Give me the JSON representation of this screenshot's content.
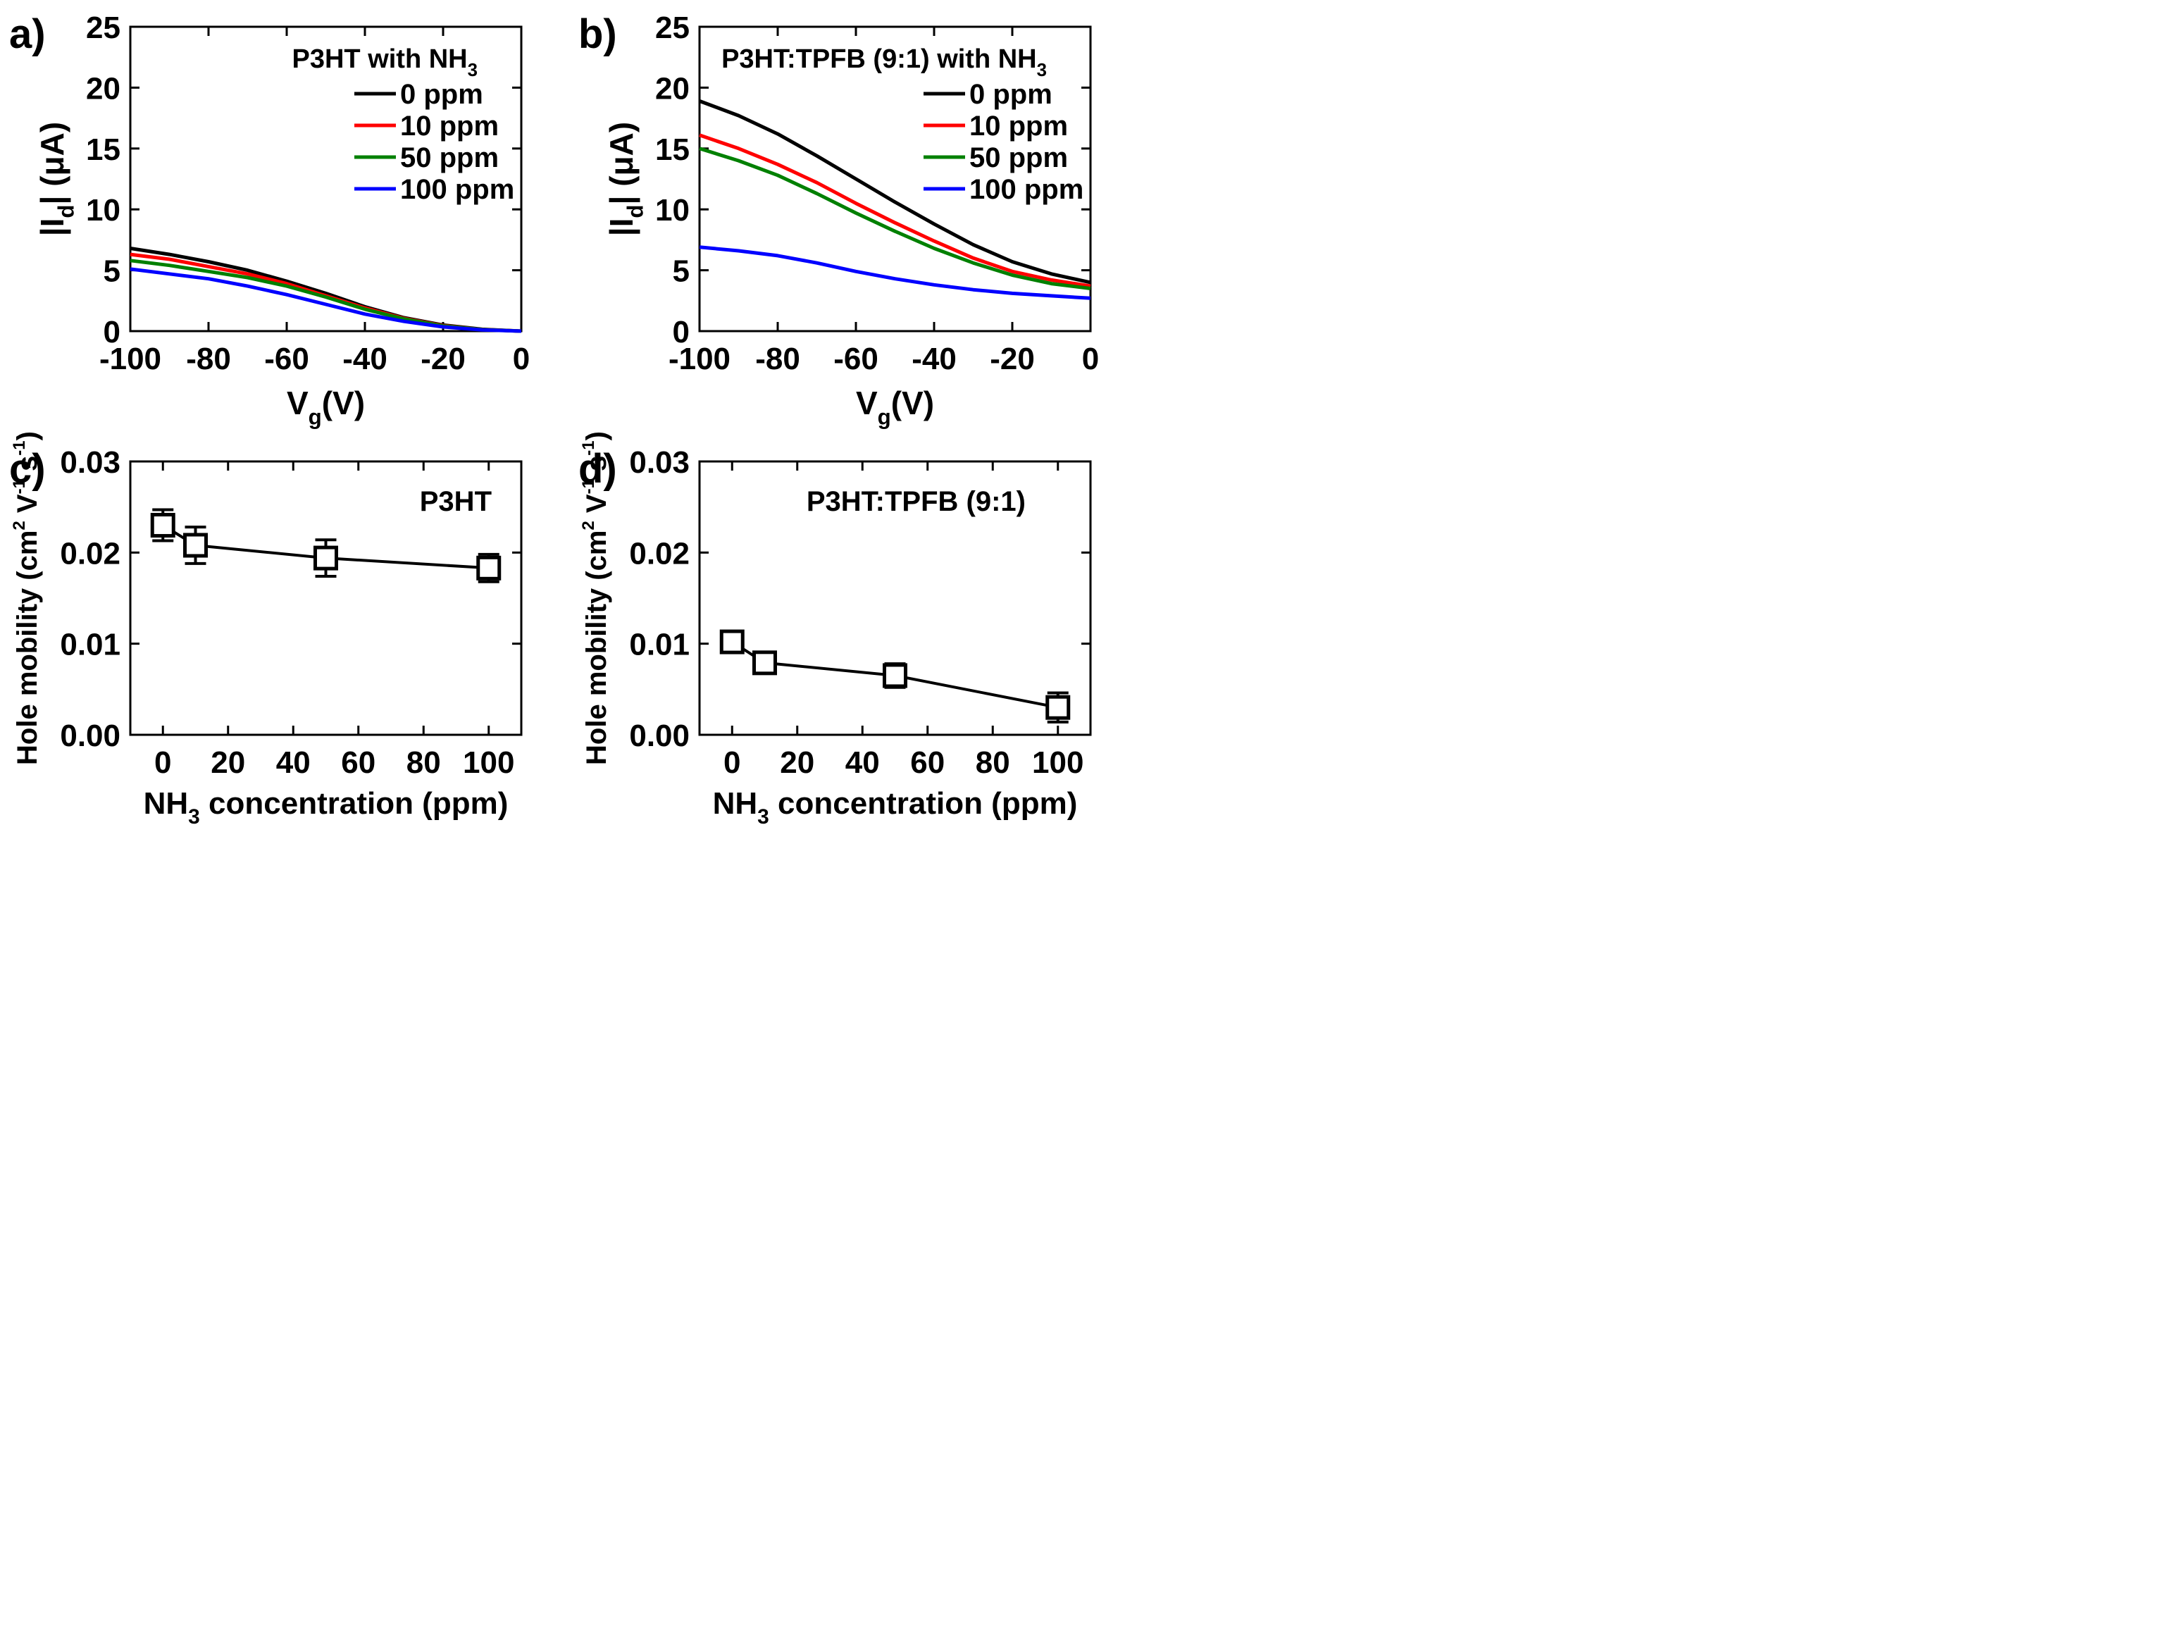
{
  "chart_data": [
    {
      "panel": "a)",
      "type": "line",
      "inset_title": "P3HT with NH",
      "inset_title_sub": "3",
      "xlabel_main": "V",
      "xlabel_sub": "g",
      "xlabel_tail": "(V)",
      "ylabel_pre": "|I",
      "ylabel_sub": "d",
      "ylabel_tail": "| (μA)",
      "xlim": [
        -100,
        0
      ],
      "ylim": [
        0,
        25
      ],
      "xticks": [
        -100,
        -80,
        -60,
        -40,
        -20,
        0
      ],
      "xtick_labels": [
        "-100",
        "-80",
        "-60",
        "-40",
        "-20",
        "0"
      ],
      "yticks": [
        0,
        5,
        10,
        15,
        20,
        25
      ],
      "ytick_labels": [
        "0",
        "5",
        "10",
        "15",
        "20",
        "25"
      ],
      "legend_position": "top-right",
      "x": [
        -100,
        -90,
        -80,
        -70,
        -60,
        -50,
        -40,
        -30,
        -20,
        -10,
        0
      ],
      "series": [
        {
          "name": "0 ppm",
          "color": "#000000",
          "values": [
            6.8,
            6.3,
            5.7,
            5.0,
            4.1,
            3.1,
            2.0,
            1.1,
            0.5,
            0.15,
            0.0
          ]
        },
        {
          "name": "10 ppm",
          "color": "#ff0000",
          "values": [
            6.3,
            5.9,
            5.3,
            4.7,
            3.9,
            2.9,
            1.9,
            1.05,
            0.45,
            0.13,
            0.0
          ]
        },
        {
          "name": "50 ppm",
          "color": "#008000",
          "values": [
            5.8,
            5.4,
            4.9,
            4.4,
            3.7,
            2.8,
            1.8,
            1.0,
            0.42,
            0.12,
            0.0
          ]
        },
        {
          "name": "100 ppm",
          "color": "#0000ff",
          "values": [
            5.1,
            4.7,
            4.3,
            3.7,
            3.0,
            2.2,
            1.4,
            0.8,
            0.35,
            0.1,
            0.0
          ]
        }
      ]
    },
    {
      "panel": "b)",
      "type": "line",
      "inset_title": "P3HT:TPFB (9:1) with NH",
      "inset_title_sub": "3",
      "xlabel_main": "V",
      "xlabel_sub": "g",
      "xlabel_tail": "(V)",
      "ylabel_pre": "|I",
      "ylabel_sub": "d",
      "ylabel_tail": "| (μA)",
      "xlim": [
        -100,
        0
      ],
      "ylim": [
        0,
        25
      ],
      "xticks": [
        -100,
        -80,
        -60,
        -40,
        -20,
        0
      ],
      "xtick_labels": [
        "-100",
        "-80",
        "-60",
        "-40",
        "-20",
        "0"
      ],
      "yticks": [
        0,
        5,
        10,
        15,
        20,
        25
      ],
      "ytick_labels": [
        "0",
        "5",
        "10",
        "15",
        "20",
        "25"
      ],
      "legend_position": "top-right",
      "x": [
        -100,
        -90,
        -80,
        -70,
        -60,
        -50,
        -40,
        -30,
        -20,
        -10,
        0
      ],
      "series": [
        {
          "name": "0 ppm",
          "color": "#000000",
          "values": [
            18.9,
            17.7,
            16.2,
            14.4,
            12.5,
            10.6,
            8.8,
            7.1,
            5.7,
            4.7,
            4.0
          ]
        },
        {
          "name": "10 ppm",
          "color": "#ff0000",
          "values": [
            16.1,
            15.0,
            13.7,
            12.2,
            10.5,
            8.9,
            7.4,
            6.0,
            4.9,
            4.2,
            3.7
          ]
        },
        {
          "name": "50 ppm",
          "color": "#008000",
          "values": [
            15.0,
            14.0,
            12.8,
            11.3,
            9.7,
            8.2,
            6.8,
            5.6,
            4.6,
            3.9,
            3.5
          ]
        },
        {
          "name": "100 ppm",
          "color": "#0000ff",
          "values": [
            6.9,
            6.6,
            6.2,
            5.6,
            4.9,
            4.3,
            3.8,
            3.4,
            3.1,
            2.9,
            2.7
          ]
        }
      ]
    },
    {
      "panel": "c)",
      "type": "scatter",
      "inset_title": "P3HT",
      "xlabel_main": "NH",
      "xlabel_sub": "3",
      "xlabel_tail": " concentration (ppm)",
      "ylabel_pre": "Hole mobility (cm",
      "ylabel_sup1": "2",
      "ylabel_mid": " V",
      "ylabel_sup2": "-1",
      "ylabel_mid2": " s",
      "ylabel_sup3": "-1",
      "ylabel_tail": ")",
      "xlim": [
        -10,
        110
      ],
      "ylim": [
        0,
        0.03
      ],
      "xticks": [
        0,
        20,
        40,
        60,
        80,
        100
      ],
      "xtick_labels": [
        "0",
        "20",
        "40",
        "60",
        "80",
        "100"
      ],
      "yticks": [
        0,
        0.01,
        0.02,
        0.03
      ],
      "ytick_labels": [
        "0.00",
        "0.01",
        "0.02",
        "0.03"
      ],
      "x": [
        0,
        10,
        50,
        100
      ],
      "values": [
        0.023,
        0.0208,
        0.0194,
        0.0183
      ],
      "errors": [
        0.0017,
        0.002,
        0.002,
        0.0015
      ]
    },
    {
      "panel": "d)",
      "type": "scatter",
      "inset_title": "P3HT:TPFB (9:1)",
      "xlabel_main": "NH",
      "xlabel_sub": "3",
      "xlabel_tail": " concentration (ppm)",
      "ylabel_pre": "Hole mobility (cm",
      "ylabel_sup1": "2",
      "ylabel_mid": " V",
      "ylabel_sup2": "-1",
      "ylabel_mid2": " s",
      "ylabel_sup3": "-1",
      "ylabel_tail": ")",
      "xlim": [
        -10,
        110
      ],
      "ylim": [
        0,
        0.03
      ],
      "xticks": [
        0,
        20,
        40,
        60,
        80,
        100
      ],
      "xtick_labels": [
        "0",
        "20",
        "40",
        "60",
        "80",
        "100"
      ],
      "yticks": [
        0,
        0.01,
        0.02,
        0.03
      ],
      "ytick_labels": [
        "0.00",
        "0.01",
        "0.02",
        "0.03"
      ],
      "x": [
        0,
        10,
        50,
        100
      ],
      "values": [
        0.0102,
        0.0079,
        0.0065,
        0.003
      ],
      "errors": [
        0.0008,
        0.001,
        0.0013,
        0.0016
      ]
    }
  ]
}
